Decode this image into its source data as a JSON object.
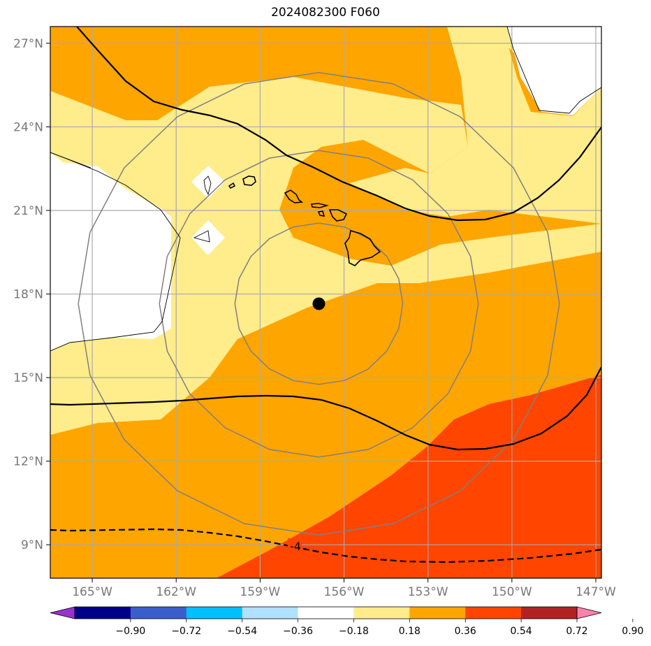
{
  "title": "2024082300 F060",
  "map": {
    "lon_range": [
      -166.5,
      -146.8
    ],
    "lat_range": [
      7.8,
      27.6
    ],
    "lon_ticks": [
      {
        "value": -165,
        "label": "165°W"
      },
      {
        "value": -162,
        "label": "162°W"
      },
      {
        "value": -159,
        "label": "159°W"
      },
      {
        "value": -156,
        "label": "156°W"
      },
      {
        "value": -153,
        "label": "153°W"
      },
      {
        "value": -150,
        "label": "150°W"
      },
      {
        "value": -147,
        "label": "147°W"
      }
    ],
    "lat_ticks": [
      {
        "value": 9,
        "label": "9°N"
      },
      {
        "value": 12,
        "label": "12°N"
      },
      {
        "value": 15,
        "label": "15°N"
      },
      {
        "value": 18,
        "label": "18°N"
      },
      {
        "value": 21,
        "label": "21°N"
      },
      {
        "value": 24,
        "label": "24°N"
      },
      {
        "value": 27,
        "label": "27°N"
      }
    ],
    "center_marker": {
      "lon": -156.9,
      "lat": 17.65
    },
    "range_rings_deg": [
      3,
      5.7,
      8.6
    ],
    "contour_label": "-4",
    "gridlines": true
  },
  "colorbar": {
    "colors": [
      "#9a32cd",
      "#00008b",
      "#3a5fcd",
      "#00bfff",
      "#b0e2ff",
      "#ffffff",
      "#ffec8b",
      "#ffa500",
      "#ff4500",
      "#b22222",
      "#ff82ab"
    ],
    "labels": [
      "−0.90",
      "−0.72",
      "−0.54",
      "−0.36",
      "−0.18",
      "0.18",
      "0.36",
      "0.54",
      "0.72",
      "0.90"
    ]
  },
  "colors": {
    "light_yellow": "#ffec8b",
    "orange": "#ffa500",
    "red_orange": "#ff4500",
    "white": "#ffffff",
    "ring": "#808080",
    "grid": "#aaaaaa"
  }
}
